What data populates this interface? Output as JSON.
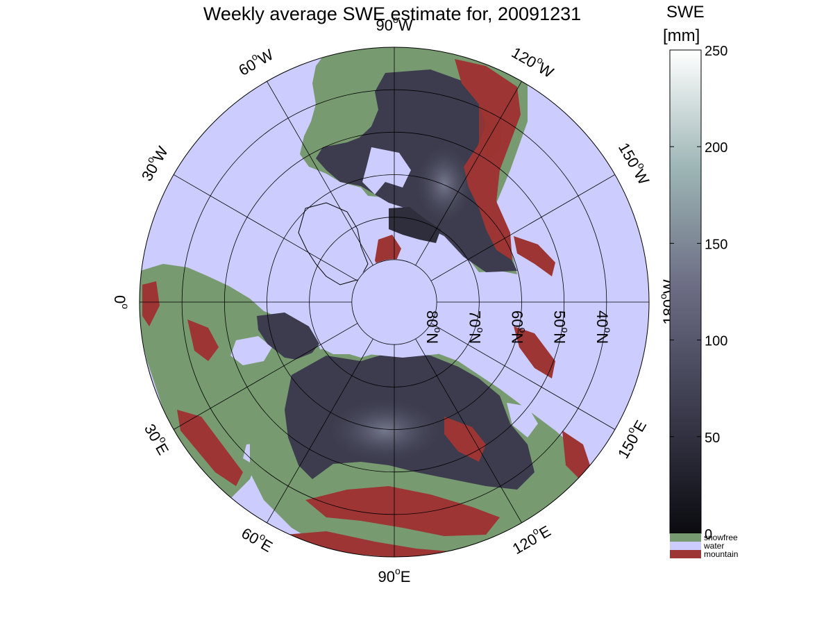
{
  "title": "Weekly average SWE estimate for, 20091231",
  "colorbar": {
    "label": "SWE",
    "unit": "[mm]",
    "ticks": [
      "0",
      "50",
      "100",
      "150",
      "200",
      "250"
    ],
    "tick_values": [
      0,
      50,
      100,
      150,
      200,
      250
    ],
    "range": [
      0,
      250
    ],
    "colors": {
      "low": "#0b0b10",
      "mid": "#6a6a82",
      "high": "#ffffff"
    },
    "categories": [
      {
        "label": "snowfree",
        "color": "#779a70"
      },
      {
        "label": "water",
        "color": "#ccccff"
      },
      {
        "label": "mountain",
        "color": "#9c3533"
      }
    ]
  },
  "map": {
    "projection": "north-polar-stereographic",
    "longitude_labels": [
      {
        "id": "lon-90w",
        "deg": "90",
        "hemi": "W",
        "lon": -90
      },
      {
        "id": "lon-60w",
        "deg": "60",
        "hemi": "W",
        "lon": -60
      },
      {
        "id": "lon-30w",
        "deg": "30",
        "hemi": "W",
        "lon": -30
      },
      {
        "id": "lon-0",
        "deg": "0",
        "hemi": "",
        "lon": 0
      },
      {
        "id": "lon-30e",
        "deg": "30",
        "hemi": "E",
        "lon": 30
      },
      {
        "id": "lon-60e",
        "deg": "60",
        "hemi": "E",
        "lon": 60
      },
      {
        "id": "lon-90e",
        "deg": "90",
        "hemi": "E",
        "lon": 90
      },
      {
        "id": "lon-120e",
        "deg": "120",
        "hemi": "E",
        "lon": 120
      },
      {
        "id": "lon-150e",
        "deg": "150",
        "hemi": "E",
        "lon": 150
      },
      {
        "id": "lon-180w",
        "deg": "180",
        "hemi": "W",
        "lon": 180
      },
      {
        "id": "lon-150w",
        "deg": "150",
        "hemi": "W",
        "lon": -150
      },
      {
        "id": "lon-120w",
        "deg": "120",
        "hemi": "W",
        "lon": -120
      }
    ],
    "latitude_labels": [
      {
        "id": "lat-80n",
        "deg": "80",
        "hemi": "N",
        "lat": 80
      },
      {
        "id": "lat-70n",
        "deg": "70",
        "hemi": "N",
        "lat": 70
      },
      {
        "id": "lat-60n",
        "deg": "60",
        "hemi": "N",
        "lat": 60
      },
      {
        "id": "lat-50n",
        "deg": "50",
        "hemi": "N",
        "lat": 50
      },
      {
        "id": "lat-40n",
        "deg": "40",
        "hemi": "N",
        "lat": 40
      }
    ],
    "colors": {
      "water": "#ccccff",
      "snowfree": "#779a70",
      "mountain": "#9c3533",
      "snow_dark": "#1c1c26",
      "snow_mid": "#4c4c60",
      "snow_light": "#7c8094",
      "grid": "#000000"
    }
  }
}
